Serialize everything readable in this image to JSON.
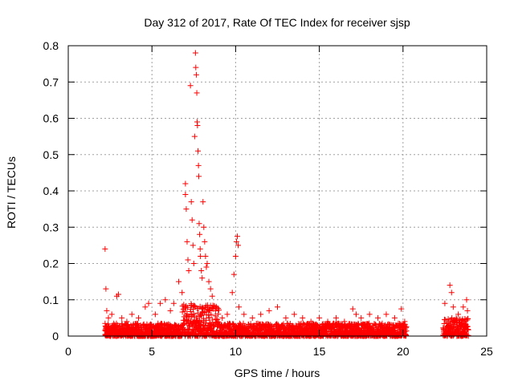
{
  "chart_data": {
    "type": "scatter",
    "title": "Day 312 of 2017, Rate Of TEC Index for receiver sjsp",
    "xlabel": "GPS time / hours",
    "ylabel": "ROTI / TECUs",
    "xlim": [
      0,
      25
    ],
    "ylim": [
      0,
      0.8
    ],
    "x_ticks": [
      0,
      5,
      10,
      15,
      20,
      25
    ],
    "y_ticks": [
      0,
      0.1,
      0.2,
      0.3,
      0.4,
      0.5,
      0.6,
      0.7,
      0.8
    ],
    "x_tick_labels": [
      "0",
      "5",
      "10",
      "15",
      "20",
      "25"
    ],
    "y_tick_labels": [
      "0",
      "0.1",
      "0.2",
      "0.3",
      "0.4",
      "0.5",
      "0.6",
      "0.7",
      "0.8"
    ],
    "grid": true,
    "marker": "+",
    "marker_color": "#ff0000",
    "series": [
      {
        "name": "ROTI sjsp",
        "points": [
          [
            2.2,
            0.24
          ],
          [
            2.25,
            0.13
          ],
          [
            2.3,
            0.07
          ],
          [
            2.4,
            0.05
          ],
          [
            2.6,
            0.06
          ],
          [
            2.9,
            0.11
          ],
          [
            3.0,
            0.115
          ],
          [
            3.2,
            0.05
          ],
          [
            3.5,
            0.04
          ],
          [
            3.8,
            0.06
          ],
          [
            4.2,
            0.05
          ],
          [
            4.6,
            0.08
          ],
          [
            4.8,
            0.09
          ],
          [
            5.2,
            0.06
          ],
          [
            5.5,
            0.09
          ],
          [
            5.8,
            0.1
          ],
          [
            6.1,
            0.07
          ],
          [
            6.3,
            0.09
          ],
          [
            6.6,
            0.15
          ],
          [
            6.8,
            0.12
          ],
          [
            7.0,
            0.42
          ],
          [
            7.0,
            0.39
          ],
          [
            7.05,
            0.35
          ],
          [
            7.1,
            0.26
          ],
          [
            7.15,
            0.21
          ],
          [
            7.2,
            0.18
          ],
          [
            7.3,
            0.69
          ],
          [
            7.35,
            0.37
          ],
          [
            7.4,
            0.32
          ],
          [
            7.45,
            0.25
          ],
          [
            7.5,
            0.2
          ],
          [
            7.55,
            0.55
          ],
          [
            7.6,
            0.78
          ],
          [
            7.62,
            0.74
          ],
          [
            7.65,
            0.72
          ],
          [
            7.68,
            0.67
          ],
          [
            7.7,
            0.59
          ],
          [
            7.72,
            0.58
          ],
          [
            7.75,
            0.51
          ],
          [
            7.78,
            0.47
          ],
          [
            7.8,
            0.44
          ],
          [
            7.82,
            0.31
          ],
          [
            7.85,
            0.28
          ],
          [
            7.88,
            0.24
          ],
          [
            7.9,
            0.22
          ],
          [
            7.95,
            0.18
          ],
          [
            8.0,
            0.16
          ],
          [
            8.05,
            0.37
          ],
          [
            8.1,
            0.3
          ],
          [
            8.15,
            0.26
          ],
          [
            8.2,
            0.22
          ],
          [
            8.25,
            0.19
          ],
          [
            8.3,
            0.2
          ],
          [
            8.4,
            0.15
          ],
          [
            8.5,
            0.13
          ],
          [
            8.6,
            0.11
          ],
          [
            8.8,
            0.07
          ],
          [
            9.2,
            0.05
          ],
          [
            9.5,
            0.06
          ],
          [
            9.8,
            0.12
          ],
          [
            9.9,
            0.17
          ],
          [
            10.0,
            0.22
          ],
          [
            10.05,
            0.26
          ],
          [
            10.1,
            0.275
          ],
          [
            10.15,
            0.25
          ],
          [
            10.2,
            0.08
          ],
          [
            10.5,
            0.06
          ],
          [
            11.0,
            0.05
          ],
          [
            11.5,
            0.06
          ],
          [
            12.0,
            0.07
          ],
          [
            12.5,
            0.08
          ],
          [
            13.0,
            0.05
          ],
          [
            13.5,
            0.06
          ],
          [
            14.0,
            0.05
          ],
          [
            14.5,
            0.04
          ],
          [
            15.0,
            0.05
          ],
          [
            15.5,
            0.04
          ],
          [
            16.0,
            0.05
          ],
          [
            16.5,
            0.04
          ],
          [
            17.0,
            0.075
          ],
          [
            17.2,
            0.06
          ],
          [
            17.5,
            0.05
          ],
          [
            18.0,
            0.06
          ],
          [
            18.5,
            0.05
          ],
          [
            19.0,
            0.06
          ],
          [
            19.5,
            0.05
          ],
          [
            19.9,
            0.075
          ],
          [
            20.1,
            0.04
          ],
          [
            22.5,
            0.09
          ],
          [
            22.8,
            0.14
          ],
          [
            22.9,
            0.12
          ],
          [
            23.0,
            0.08
          ],
          [
            23.3,
            0.06
          ],
          [
            23.6,
            0.08
          ],
          [
            23.8,
            0.1
          ],
          [
            23.85,
            0.07
          ]
        ]
      }
    ]
  }
}
